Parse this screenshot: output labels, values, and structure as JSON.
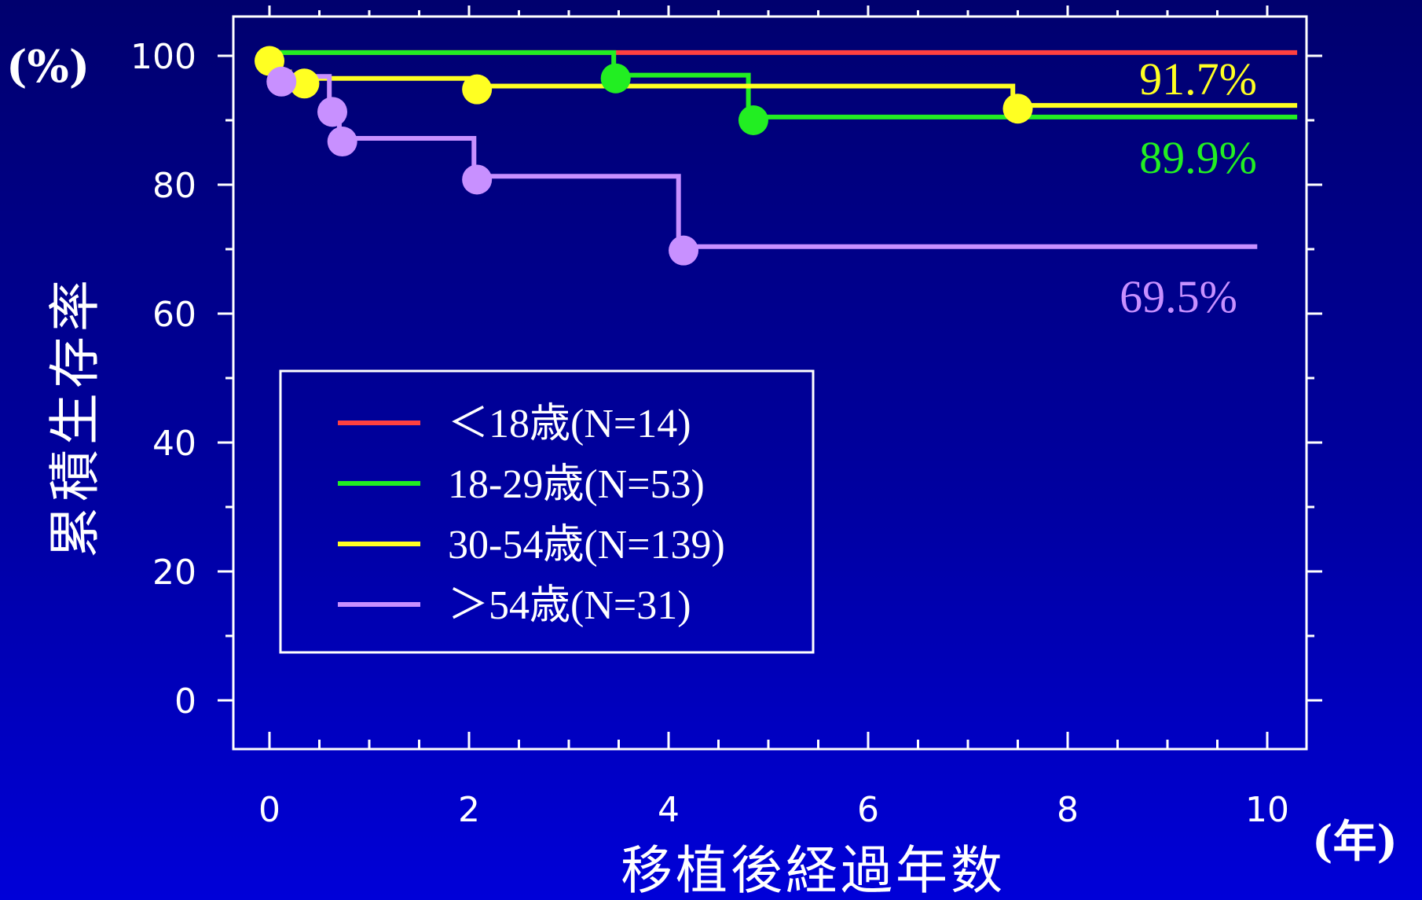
{
  "chart_data": {
    "type": "line",
    "subtype": "kaplan-meier-step",
    "ylabel": "累積生存率",
    "xlabel": "移植後経過年数",
    "y_unit": "(%)",
    "x_unit": "(年)",
    "xlim": [
      0,
      10.3
    ],
    "ylim": [
      -3,
      104
    ],
    "x_ticks": [
      "0",
      "2",
      "4",
      "6",
      "8",
      "10"
    ],
    "y_ticks": [
      "0",
      "20",
      "40",
      "60",
      "80",
      "100"
    ],
    "x_tick_values": [
      0,
      2,
      4,
      6,
      8,
      10
    ],
    "y_tick_values": [
      0,
      20,
      40,
      60,
      80,
      100
    ],
    "legend_position": "lower-left inside",
    "series": [
      {
        "name": "＜18歳(N=14)",
        "color": "#ff4040",
        "steps": [
          [
            0,
            100.5
          ],
          [
            10.3,
            100.5
          ]
        ],
        "events": [],
        "end_label": ""
      },
      {
        "name": "18-29歳(N=53)",
        "color": "#22ee22",
        "steps": [
          [
            0,
            100.5
          ],
          [
            3.45,
            100.5
          ],
          [
            3.45,
            97
          ],
          [
            4.8,
            97
          ],
          [
            4.8,
            90.5
          ],
          [
            10.3,
            90.5
          ]
        ],
        "events": [
          [
            3.47,
            96.5
          ],
          [
            4.85,
            90.0
          ]
        ],
        "end_label": "89.9%"
      },
      {
        "name": "30-54歳(N=139)",
        "color": "#ffff22",
        "steps": [
          [
            0,
            99.5
          ],
          [
            0.1,
            99.5
          ],
          [
            0.1,
            97.5
          ],
          [
            0.2,
            97.5
          ],
          [
            0.2,
            96.5
          ],
          [
            2.0,
            96.5
          ],
          [
            2.0,
            95.3
          ],
          [
            7.45,
            95.3
          ],
          [
            7.45,
            92.3
          ],
          [
            10.3,
            92.3
          ]
        ],
        "events": [
          [
            0.0,
            99.2
          ],
          [
            0.35,
            95.7
          ],
          [
            2.08,
            94.8
          ],
          [
            7.5,
            91.8
          ]
        ],
        "end_label": "91.7%"
      },
      {
        "name": "＞54歳(N=31)",
        "color": "#c890ff",
        "steps": [
          [
            0.05,
            100
          ],
          [
            0.05,
            96.8
          ],
          [
            0.6,
            96.8
          ],
          [
            0.6,
            91.8
          ],
          [
            0.7,
            91.8
          ],
          [
            0.7,
            87.2
          ],
          [
            2.05,
            87.2
          ],
          [
            2.05,
            81.3
          ],
          [
            4.1,
            81.3
          ],
          [
            4.1,
            70.4
          ],
          [
            9.9,
            70.4
          ]
        ],
        "events": [
          [
            0.12,
            96.0
          ],
          [
            0.63,
            91.3
          ],
          [
            0.73,
            86.7
          ],
          [
            2.08,
            80.8
          ],
          [
            4.15,
            69.8
          ]
        ],
        "end_label": "69.5%"
      }
    ]
  }
}
